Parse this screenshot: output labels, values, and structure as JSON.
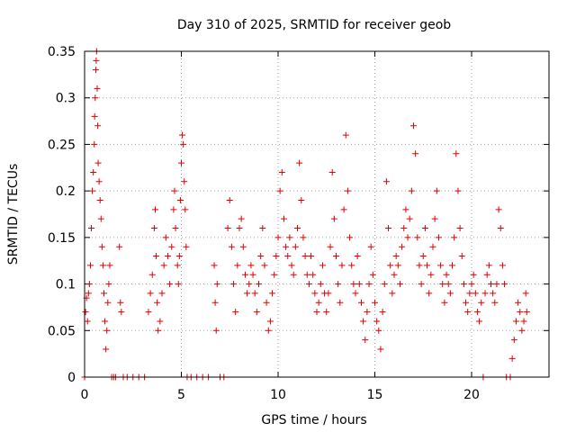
{
  "chart_data": {
    "type": "scatter",
    "title": "Day 310 of 2025, SRMTID for receiver geob",
    "xlabel": "GPS time / hours",
    "ylabel": "SRMTID / TECUs",
    "xlim": [
      0,
      24
    ],
    "ylim": [
      0,
      0.35
    ],
    "xticks": [
      0,
      5,
      10,
      15,
      20
    ],
    "xtick_labels": [
      "0",
      "5",
      "10",
      "15",
      "20"
    ],
    "yticks": [
      0,
      0.05,
      0.1,
      0.15,
      0.2,
      0.25,
      0.3,
      0.35
    ],
    "ytick_labels": [
      "0",
      "0.05",
      "0.1",
      "0.15",
      "0.2",
      "0.25",
      "0.3",
      "0.35"
    ],
    "grid": true,
    "marker": "+",
    "color": "#e00000",
    "series": [
      {
        "name": "SRMTID",
        "points": [
          [
            0.0,
            0.0
          ],
          [
            0.05,
            0.07
          ],
          [
            0.1,
            0.085
          ],
          [
            0.15,
            0.06
          ],
          [
            0.2,
            0.09
          ],
          [
            0.25,
            0.1
          ],
          [
            0.3,
            0.12
          ],
          [
            0.35,
            0.16
          ],
          [
            0.4,
            0.2
          ],
          [
            0.45,
            0.22
          ],
          [
            0.5,
            0.25
          ],
          [
            0.52,
            0.28
          ],
          [
            0.55,
            0.3
          ],
          [
            0.58,
            0.33
          ],
          [
            0.6,
            0.34
          ],
          [
            0.62,
            0.35
          ],
          [
            0.65,
            0.31
          ],
          [
            0.68,
            0.27
          ],
          [
            0.7,
            0.23
          ],
          [
            0.75,
            0.21
          ],
          [
            0.8,
            0.19
          ],
          [
            0.85,
            0.17
          ],
          [
            0.9,
            0.14
          ],
          [
            0.95,
            0.12
          ],
          [
            1.0,
            0.09
          ],
          [
            1.05,
            0.06
          ],
          [
            1.1,
            0.03
          ],
          [
            1.15,
            0.05
          ],
          [
            1.2,
            0.08
          ],
          [
            1.25,
            0.1
          ],
          [
            1.3,
            0.12
          ],
          [
            1.4,
            0.0
          ],
          [
            1.5,
            0.0
          ],
          [
            1.6,
            0.0
          ],
          [
            1.8,
            0.14
          ],
          [
            1.85,
            0.08
          ],
          [
            1.9,
            0.07
          ],
          [
            2.0,
            0.0
          ],
          [
            2.2,
            0.0
          ],
          [
            2.5,
            0.0
          ],
          [
            2.8,
            0.0
          ],
          [
            3.1,
            0.0
          ],
          [
            3.3,
            0.07
          ],
          [
            3.4,
            0.09
          ],
          [
            3.5,
            0.11
          ],
          [
            3.6,
            0.16
          ],
          [
            3.65,
            0.18
          ],
          [
            3.7,
            0.13
          ],
          [
            3.75,
            0.08
          ],
          [
            3.8,
            0.05
          ],
          [
            3.9,
            0.06
          ],
          [
            4.0,
            0.09
          ],
          [
            4.1,
            0.12
          ],
          [
            4.2,
            0.15
          ],
          [
            4.3,
            0.13
          ],
          [
            4.4,
            0.1
          ],
          [
            4.5,
            0.14
          ],
          [
            4.6,
            0.18
          ],
          [
            4.65,
            0.2
          ],
          [
            4.7,
            0.16
          ],
          [
            4.8,
            0.12
          ],
          [
            4.85,
            0.1
          ],
          [
            4.9,
            0.13
          ],
          [
            4.95,
            0.19
          ],
          [
            5.0,
            0.23
          ],
          [
            5.05,
            0.26
          ],
          [
            5.1,
            0.25
          ],
          [
            5.15,
            0.21
          ],
          [
            5.2,
            0.18
          ],
          [
            5.25,
            0.14
          ],
          [
            5.3,
            0.0
          ],
          [
            5.5,
            0.0
          ],
          [
            5.8,
            0.0
          ],
          [
            6.1,
            0.0
          ],
          [
            6.4,
            0.0
          ],
          [
            6.7,
            0.12
          ],
          [
            6.75,
            0.08
          ],
          [
            6.8,
            0.05
          ],
          [
            6.85,
            0.1
          ],
          [
            7.0,
            0.0
          ],
          [
            7.2,
            0.0
          ],
          [
            7.4,
            0.16
          ],
          [
            7.5,
            0.19
          ],
          [
            7.6,
            0.14
          ],
          [
            7.7,
            0.1
          ],
          [
            7.8,
            0.07
          ],
          [
            7.9,
            0.12
          ],
          [
            8.0,
            0.16
          ],
          [
            8.1,
            0.17
          ],
          [
            8.2,
            0.14
          ],
          [
            8.3,
            0.11
          ],
          [
            8.4,
            0.09
          ],
          [
            8.5,
            0.1
          ],
          [
            8.6,
            0.12
          ],
          [
            8.7,
            0.11
          ],
          [
            8.8,
            0.09
          ],
          [
            8.9,
            0.07
          ],
          [
            9.0,
            0.1
          ],
          [
            9.1,
            0.13
          ],
          [
            9.2,
            0.16
          ],
          [
            9.3,
            0.12
          ],
          [
            9.4,
            0.08
          ],
          [
            9.5,
            0.05
          ],
          [
            9.6,
            0.06
          ],
          [
            9.7,
            0.09
          ],
          [
            9.8,
            0.11
          ],
          [
            9.9,
            0.13
          ],
          [
            10.0,
            0.15
          ],
          [
            10.1,
            0.2
          ],
          [
            10.2,
            0.22
          ],
          [
            10.3,
            0.17
          ],
          [
            10.4,
            0.14
          ],
          [
            10.5,
            0.13
          ],
          [
            10.6,
            0.15
          ],
          [
            10.7,
            0.12
          ],
          [
            10.8,
            0.11
          ],
          [
            10.9,
            0.14
          ],
          [
            11.0,
            0.16
          ],
          [
            11.1,
            0.23
          ],
          [
            11.2,
            0.19
          ],
          [
            11.3,
            0.15
          ],
          [
            11.4,
            0.13
          ],
          [
            11.5,
            0.11
          ],
          [
            11.6,
            0.1
          ],
          [
            11.7,
            0.13
          ],
          [
            11.8,
            0.11
          ],
          [
            11.9,
            0.09
          ],
          [
            12.0,
            0.07
          ],
          [
            12.1,
            0.08
          ],
          [
            12.2,
            0.1
          ],
          [
            12.3,
            0.12
          ],
          [
            12.4,
            0.09
          ],
          [
            12.5,
            0.07
          ],
          [
            12.6,
            0.09
          ],
          [
            12.7,
            0.14
          ],
          [
            12.8,
            0.22
          ],
          [
            12.9,
            0.17
          ],
          [
            13.0,
            0.13
          ],
          [
            13.1,
            0.1
          ],
          [
            13.2,
            0.08
          ],
          [
            13.3,
            0.12
          ],
          [
            13.4,
            0.18
          ],
          [
            13.5,
            0.26
          ],
          [
            13.6,
            0.2
          ],
          [
            13.7,
            0.15
          ],
          [
            13.8,
            0.12
          ],
          [
            13.9,
            0.1
          ],
          [
            14.0,
            0.09
          ],
          [
            14.1,
            0.13
          ],
          [
            14.2,
            0.1
          ],
          [
            14.3,
            0.08
          ],
          [
            14.4,
            0.06
          ],
          [
            14.5,
            0.04
          ],
          [
            14.6,
            0.07
          ],
          [
            14.7,
            0.1
          ],
          [
            14.8,
            0.14
          ],
          [
            14.9,
            0.11
          ],
          [
            15.0,
            0.08
          ],
          [
            15.1,
            0.06
          ],
          [
            15.2,
            0.05
          ],
          [
            15.3,
            0.03
          ],
          [
            15.4,
            0.07
          ],
          [
            15.5,
            0.1
          ],
          [
            15.6,
            0.21
          ],
          [
            15.7,
            0.16
          ],
          [
            15.8,
            0.12
          ],
          [
            15.9,
            0.09
          ],
          [
            16.0,
            0.11
          ],
          [
            16.1,
            0.13
          ],
          [
            16.2,
            0.12
          ],
          [
            16.3,
            0.1
          ],
          [
            16.4,
            0.14
          ],
          [
            16.5,
            0.16
          ],
          [
            16.6,
            0.18
          ],
          [
            16.7,
            0.15
          ],
          [
            16.8,
            0.17
          ],
          [
            16.9,
            0.2
          ],
          [
            17.0,
            0.27
          ],
          [
            17.1,
            0.24
          ],
          [
            17.2,
            0.15
          ],
          [
            17.3,
            0.12
          ],
          [
            17.4,
            0.1
          ],
          [
            17.5,
            0.13
          ],
          [
            17.6,
            0.16
          ],
          [
            17.7,
            0.12
          ],
          [
            17.8,
            0.09
          ],
          [
            17.9,
            0.11
          ],
          [
            18.0,
            0.14
          ],
          [
            18.1,
            0.17
          ],
          [
            18.2,
            0.2
          ],
          [
            18.3,
            0.15
          ],
          [
            18.4,
            0.12
          ],
          [
            18.5,
            0.1
          ],
          [
            18.6,
            0.08
          ],
          [
            18.7,
            0.11
          ],
          [
            18.8,
            0.1
          ],
          [
            18.9,
            0.09
          ],
          [
            19.0,
            0.12
          ],
          [
            19.1,
            0.15
          ],
          [
            19.2,
            0.24
          ],
          [
            19.3,
            0.2
          ],
          [
            19.4,
            0.16
          ],
          [
            19.5,
            0.13
          ],
          [
            19.6,
            0.1
          ],
          [
            19.7,
            0.08
          ],
          [
            19.8,
            0.07
          ],
          [
            19.9,
            0.09
          ],
          [
            20.0,
            0.1
          ],
          [
            20.1,
            0.11
          ],
          [
            20.2,
            0.09
          ],
          [
            20.3,
            0.07
          ],
          [
            20.4,
            0.06
          ],
          [
            20.5,
            0.08
          ],
          [
            20.6,
            0.0
          ],
          [
            20.7,
            0.09
          ],
          [
            20.8,
            0.11
          ],
          [
            20.9,
            0.12
          ],
          [
            21.0,
            0.1
          ],
          [
            21.1,
            0.09
          ],
          [
            21.2,
            0.08
          ],
          [
            21.3,
            0.1
          ],
          [
            21.4,
            0.18
          ],
          [
            21.5,
            0.16
          ],
          [
            21.6,
            0.12
          ],
          [
            21.7,
            0.1
          ],
          [
            21.8,
            0.0
          ],
          [
            22.0,
            0.0
          ],
          [
            22.1,
            0.02
          ],
          [
            22.2,
            0.04
          ],
          [
            22.3,
            0.06
          ],
          [
            22.4,
            0.08
          ],
          [
            22.5,
            0.07
          ],
          [
            22.6,
            0.05
          ],
          [
            22.7,
            0.06
          ],
          [
            22.8,
            0.09
          ],
          [
            22.85,
            0.07
          ]
        ]
      }
    ]
  }
}
